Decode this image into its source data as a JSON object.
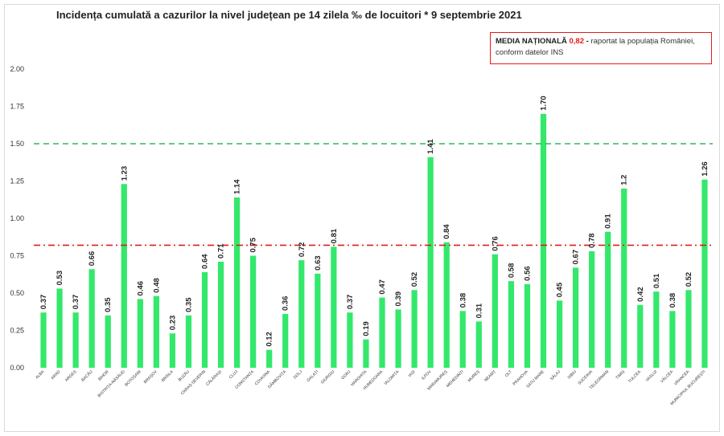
{
  "legend": {
    "label": "MEDIA NAȚIONALĂ",
    "value": "0,82",
    "dash": " - ",
    "text": "raportat la populația României, conform datelor INS"
  },
  "chart_data": {
    "type": "bar",
    "title": "Incidența cumulată a cazurilor la nivel județean pe 14 zilela ‰ de locuitori * 9 septembrie 2021",
    "xlabel": "",
    "ylabel": "",
    "ylim": [
      0,
      2.0
    ],
    "yticks": [
      "0.00",
      "0.25",
      "0.50",
      "0.75",
      "1.00",
      "1.25",
      "1.50",
      "1.75",
      "2.00"
    ],
    "grid": false,
    "bar_color": "#33e86b",
    "categories": [
      "ALBA",
      "ARAD",
      "ARGEȘ",
      "BACĂU",
      "BIHOR",
      "BISTRIȚA-NĂSĂUD",
      "BOTOȘANI",
      "BRAȘOV",
      "BRĂILA",
      "BUZĂU",
      "CARAȘ-SEVERIN",
      "CĂLĂRAȘI",
      "CLUJ",
      "CONSTANȚA",
      "COVASNA",
      "DÂMBOVIȚA",
      "DOLJ",
      "GALAȚI",
      "GIURGIU",
      "GORJ",
      "HARGHITA",
      "HUNEDOARA",
      "IALOMIȚA",
      "IAȘI",
      "ILFOV",
      "MARAMUREȘ",
      "MEHEDINȚI",
      "MUREȘ",
      "NEAMȚ",
      "OLT",
      "PRAHOVA",
      "SATU MARE",
      "SĂLAJ",
      "SIBIU",
      "SUCEAVA",
      "TELEORMAN",
      "TIMIȘ",
      "TULCEA",
      "VASLUI",
      "VÂLCEA",
      "VRANCEA",
      "MUNICIPIUL BUCUREȘTI"
    ],
    "values": [
      0.37,
      0.53,
      0.37,
      0.66,
      0.35,
      1.23,
      0.46,
      0.48,
      0.23,
      0.35,
      0.64,
      0.71,
      1.14,
      0.75,
      0.12,
      0.36,
      0.72,
      0.63,
      0.81,
      0.37,
      0.19,
      0.47,
      0.39,
      0.52,
      1.41,
      0.84,
      0.38,
      0.31,
      0.76,
      0.58,
      0.56,
      1.7,
      0.45,
      0.67,
      0.78,
      0.91,
      1.2,
      0.42,
      0.51,
      0.38,
      0.52,
      1.26
    ],
    "labels": [
      "0.37",
      "0.53",
      "0.37",
      "0.66",
      "0.35",
      "1.23",
      "0.46",
      "0.48",
      "0.23",
      "0.35",
      "0.64",
      "0.71",
      "1.14",
      "0.75",
      "0.12",
      "0.36",
      "0.72",
      "0.63",
      "0.81",
      "0.37",
      "0.19",
      "0.47",
      "0.39",
      "0.52",
      "1.41",
      "0.84",
      "0.38",
      "0.31",
      "0.76",
      "0.58",
      "0.56",
      "1.70",
      "0.45",
      "0.67",
      "0.78",
      "0.91",
      "1.2",
      "0.42",
      "0.51",
      "0.38",
      "0.52",
      "1.26"
    ],
    "reference_lines": [
      {
        "value": 1.5,
        "color": "#2fb85a"
      },
      {
        "value": 0.82,
        "color": "#e31c1c"
      }
    ]
  }
}
